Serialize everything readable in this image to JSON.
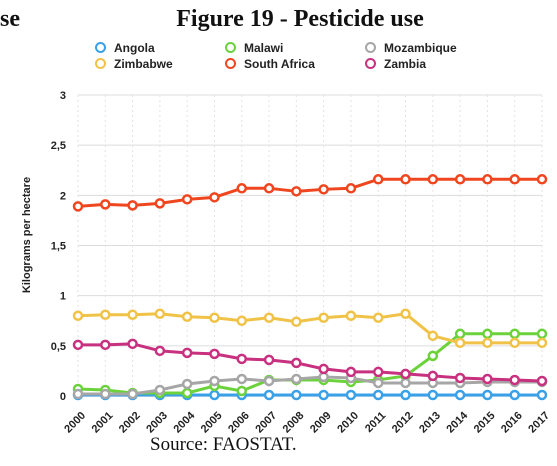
{
  "cut_text": "se",
  "title": "Figure 19 - Pesticide use",
  "source": "Source: FAOSTAT.",
  "chart_data": {
    "type": "line",
    "title": "Figure 19 - Pesticide use",
    "xlabel": "",
    "ylabel": "Kilograms per hectare",
    "ylim": [
      0,
      3
    ],
    "yticks": [
      "0",
      "0,5",
      "1",
      "1,5",
      "2",
      "2,5",
      "3"
    ],
    "grid": true,
    "legend_position": "top",
    "categories": [
      "2000",
      "2001",
      "2002",
      "2003",
      "2004",
      "2005",
      "2006",
      "2007",
      "2008",
      "2009",
      "2010",
      "2011",
      "2012",
      "2013",
      "2014",
      "2015",
      "2016",
      "2017"
    ],
    "series": [
      {
        "name": "Angola",
        "color": "#3aa0e8",
        "values": [
          0.01,
          0.01,
          0.01,
          0.01,
          0.01,
          0.01,
          0.01,
          0.01,
          0.01,
          0.01,
          0.01,
          0.01,
          0.01,
          0.01,
          0.01,
          0.01,
          0.01,
          0.01
        ]
      },
      {
        "name": "Malawi",
        "color": "#6cd23c",
        "values": [
          0.07,
          0.06,
          0.03,
          0.03,
          0.03,
          0.1,
          0.05,
          0.16,
          0.16,
          0.16,
          0.14,
          0.16,
          0.2,
          0.4,
          0.62,
          0.62,
          0.62,
          0.62
        ]
      },
      {
        "name": "Mozambique",
        "color": "#a6a6a6",
        "values": [
          0.02,
          0.02,
          0.02,
          0.06,
          0.12,
          0.15,
          0.17,
          0.15,
          0.17,
          0.19,
          0.18,
          0.13,
          0.13,
          0.13,
          0.13,
          0.14,
          0.14,
          0.14
        ]
      },
      {
        "name": "Zimbabwe",
        "color": "#f0c247",
        "values": [
          0.8,
          0.81,
          0.81,
          0.82,
          0.79,
          0.78,
          0.75,
          0.78,
          0.74,
          0.78,
          0.8,
          0.78,
          0.82,
          0.6,
          0.53,
          0.53,
          0.53,
          0.53
        ]
      },
      {
        "name": "South Africa",
        "color": "#f0461f",
        "values": [
          1.89,
          1.91,
          1.9,
          1.92,
          1.96,
          1.98,
          2.07,
          2.07,
          2.04,
          2.06,
          2.07,
          2.16,
          2.16,
          2.16,
          2.16,
          2.16,
          2.16,
          2.16
        ]
      },
      {
        "name": "Zambia",
        "color": "#c8317f",
        "values": [
          0.51,
          0.51,
          0.52,
          0.45,
          0.43,
          0.42,
          0.37,
          0.36,
          0.33,
          0.27,
          0.24,
          0.24,
          0.22,
          0.2,
          0.18,
          0.17,
          0.16,
          0.15
        ]
      }
    ]
  }
}
